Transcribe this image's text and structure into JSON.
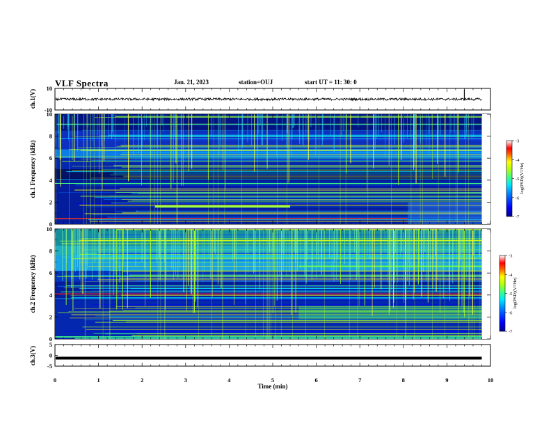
{
  "header": {
    "title": "VLF Spectra",
    "date": "Jan. 21, 2023",
    "station": "station=OUJ",
    "start": "start  UT =   11: 30: 0"
  },
  "chart_data": [
    {
      "type": "line",
      "panel": "ch1-waveform",
      "ylabel": "ch.1(V)",
      "ylim": [
        -10,
        10
      ],
      "yticks": [
        10,
        -10
      ],
      "xlim": [
        0,
        10
      ],
      "series": [
        {
          "values_summary": "noise waveform centered near 0 V, amplitude about ±1 V, occasional spikes near 9.4 min"
        }
      ]
    },
    {
      "type": "heatmap",
      "panel": "ch1-spectrogram",
      "ylabel": "ch.1  Frequency  (kHz)",
      "ylim": [
        0,
        10
      ],
      "yticks": [
        0,
        2,
        4,
        6,
        8,
        10
      ],
      "xlim": [
        0,
        9.8
      ],
      "colorbar": {
        "label": "log(PSD)(V²/Hz)",
        "range": [
          -7,
          -3
        ],
        "ticks": [
          -3,
          -4,
          -5,
          -6,
          -7
        ]
      }
    },
    {
      "type": "heatmap",
      "panel": "ch2-spectrogram",
      "ylabel": "ch.2  Frequency  (kHz)",
      "ylim": [
        0,
        10
      ],
      "yticks": [
        0,
        2,
        4,
        6,
        8,
        10
      ],
      "xlim": [
        0,
        9.8
      ],
      "colorbar": {
        "label": "log(PSD)(V²/Hz)",
        "range": [
          -7,
          -3
        ],
        "ticks": [
          -3,
          -4,
          -5,
          -6,
          -7
        ]
      }
    },
    {
      "type": "line",
      "panel": "ch3-waveform",
      "ylabel": "ch.3(V)",
      "ylim": [
        -5,
        5
      ],
      "yticks": [
        5,
        0,
        -5
      ],
      "xlim": [
        0,
        10
      ],
      "series": [
        {
          "values_summary": "flat trace near -1.3 V across the record"
        }
      ]
    }
  ],
  "axis": {
    "xlabel": "Time  (min)",
    "xticks": [
      0,
      1,
      2,
      3,
      4,
      5,
      6,
      7,
      8,
      9,
      10
    ]
  },
  "colormap": [
    "#00008f",
    "#0000ff",
    "#0070ff",
    "#00e0ff",
    "#40ff90",
    "#a0ff20",
    "#ffff00",
    "#ff8000",
    "#ff0000",
    "#ff8080",
    "#ffffff"
  ]
}
